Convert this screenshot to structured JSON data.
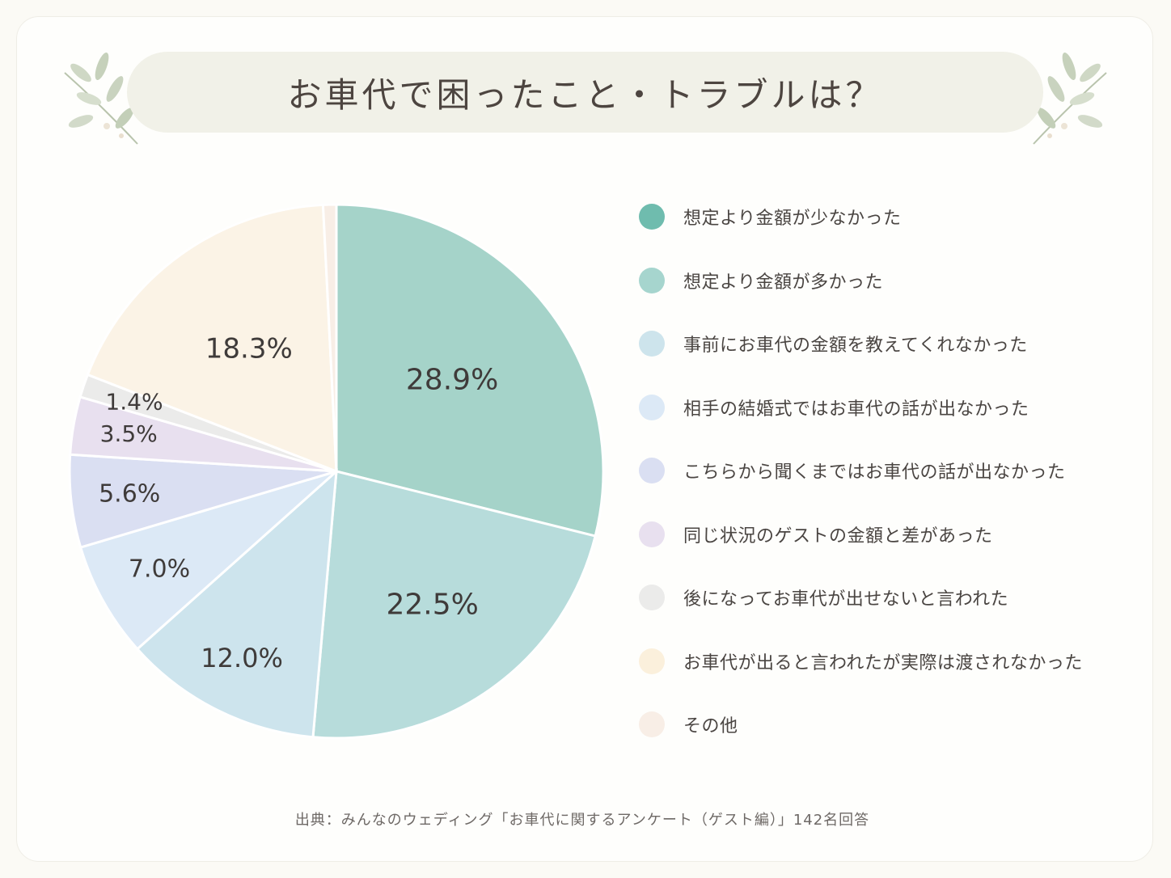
{
  "title": "お車代で困ったこと・トラブルは？",
  "source": "出典：みんなのウェディング「お車代に関するアンケート（ゲスト編）」142名回答",
  "chart_data": {
    "type": "pie",
    "title": "お車代で困ったこと・トラブルは？",
    "start": "top, clockwise",
    "slices": [
      {
        "name": "想定より金額が少なかった",
        "value": 28.9,
        "label": "28.9%",
        "color": "#a5d3c9",
        "dot_color": "#6fbcae"
      },
      {
        "name": "想定より金額が多かった",
        "value": 22.5,
        "label": "22.5%",
        "color": "#b7dcdb",
        "dot_color": "#a6d5ce"
      },
      {
        "name": "事前にお車代の金額を教えてくれなかった",
        "value": 12.0,
        "label": "12.0%",
        "color": "#cde4ed",
        "dot_color": "#cde4ec"
      },
      {
        "name": "相手の結婚式ではお車代の話が出なかった",
        "value": 7.0,
        "label": "7.0%",
        "color": "#dce9f6",
        "dot_color": "#dce9f6"
      },
      {
        "name": "こちらから聞くまではお車代の話が出なかった",
        "value": 5.6,
        "label": "5.6%",
        "color": "#dadff2",
        "dot_color": "#dadff2"
      },
      {
        "name": "同じ状況のゲストの金額と差があった",
        "value": 3.5,
        "label": "3.5%",
        "color": "#e8e0ef",
        "dot_color": "#e8e0ef"
      },
      {
        "name": "後になってお車代が出せないと言われた",
        "value": 1.4,
        "label": "1.4%",
        "color": "#ebebea",
        "dot_color": "#ebebea"
      },
      {
        "name": "お車代が出ると言われたが実際は渡されなかった",
        "value": 18.3,
        "label": "18.3%",
        "color": "#fbf3e6",
        "dot_color": "#fbf0dc"
      },
      {
        "name": "その他",
        "value": 0.8,
        "label": "",
        "color": "#f8eee6",
        "dot_color": "#f8eee6"
      }
    ]
  }
}
